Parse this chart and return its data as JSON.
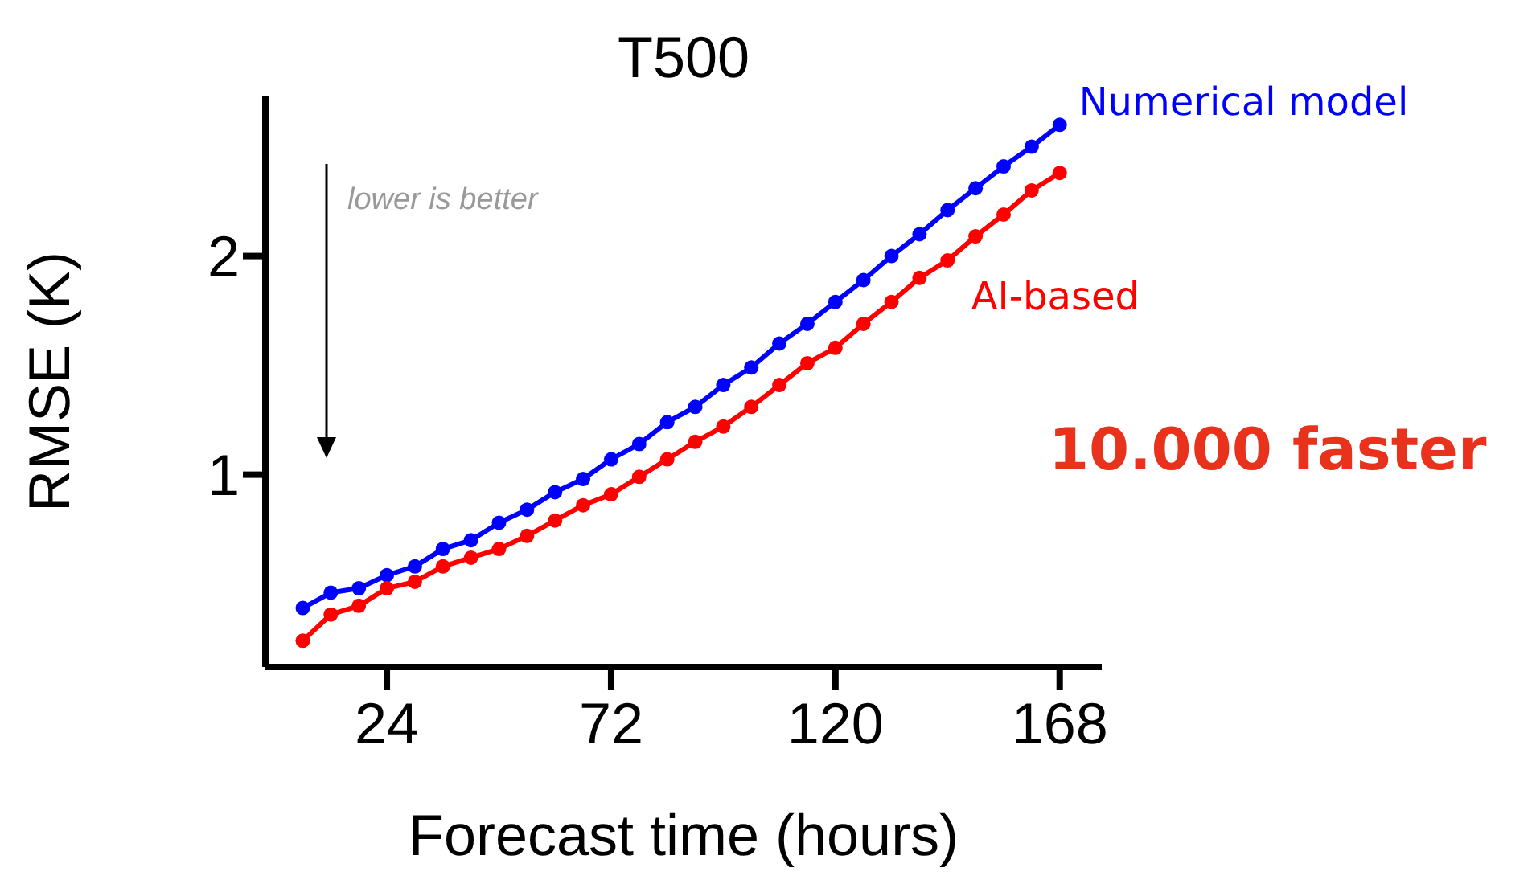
{
  "chart_data": {
    "type": "line",
    "title": "T500",
    "xlabel": "Forecast time (hours)",
    "ylabel": "RMSE (K)",
    "x": [
      6,
      12,
      18,
      24,
      30,
      36,
      42,
      48,
      54,
      60,
      66,
      72,
      78,
      84,
      90,
      96,
      102,
      108,
      114,
      120,
      126,
      132,
      138,
      144,
      150,
      156,
      162,
      168
    ],
    "series": [
      {
        "name": "Numerical model",
        "color": "#0000ff",
        "values": [
          0.39,
          0.46,
          0.48,
          0.54,
          0.58,
          0.66,
          0.7,
          0.78,
          0.84,
          0.92,
          0.98,
          1.07,
          1.14,
          1.24,
          1.31,
          1.41,
          1.49,
          1.6,
          1.69,
          1.79,
          1.89,
          2.0,
          2.1,
          2.21,
          2.31,
          2.41,
          2.5,
          2.6
        ]
      },
      {
        "name": "AI-based",
        "color": "#ff0000",
        "values": [
          0.24,
          0.36,
          0.4,
          0.48,
          0.51,
          0.58,
          0.62,
          0.66,
          0.72,
          0.79,
          0.86,
          0.91,
          0.99,
          1.07,
          1.15,
          1.22,
          1.31,
          1.41,
          1.51,
          1.58,
          1.69,
          1.79,
          1.9,
          1.98,
          2.09,
          2.19,
          2.3,
          2.38
        ]
      }
    ],
    "xlim": [
      -2,
      177
    ],
    "xticks": [
      24,
      72,
      120,
      168
    ],
    "ylim": [
      0.12,
      2.73
    ],
    "yticks": [
      1,
      2
    ],
    "grid": false,
    "legend": false,
    "marker": "circle",
    "line_style": "solid",
    "annotations": [
      "lower is better",
      "10.000 faster"
    ]
  }
}
